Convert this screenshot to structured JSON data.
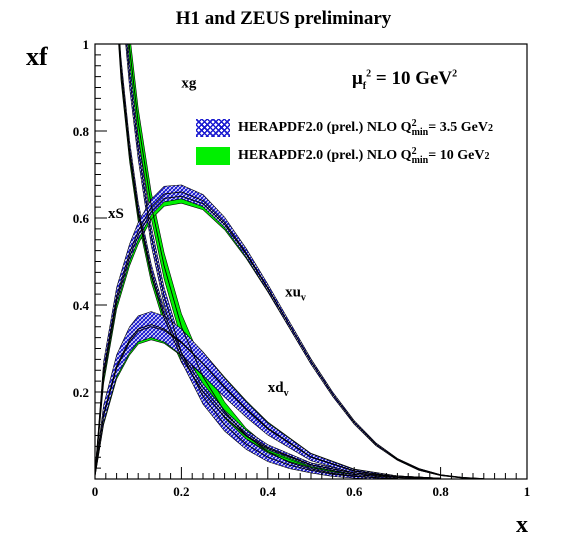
{
  "title": "H1 and ZEUS preliminary",
  "ylabel": "xf",
  "xlabel": "x",
  "scale": {
    "prefix": "μ",
    "sub": "f",
    "sup": "2",
    "suffix": " = 10 GeV",
    "unit_sup": "2"
  },
  "legend": [
    {
      "label": "HERAPDF2.0 (prel.) NLO Q",
      "sub": "min",
      "sup": "2",
      "suffix": " = 3.5 GeV",
      "suffix_sup": "2",
      "style": "hatched-blue"
    },
    {
      "label": "HERAPDF2.0 (prel.) NLO Q",
      "sub": "min",
      "sup": "2",
      "suffix": " = 10 GeV",
      "suffix_sup": "2",
      "style": "solid-green"
    }
  ],
  "colors": {
    "hatch": "#1a1ad0",
    "green": "#00f000",
    "line": "#000000"
  },
  "chart_data": {
    "type": "line",
    "title": "H1 and ZEUS preliminary",
    "xlabel": "x",
    "ylabel": "xf",
    "xlim": [
      0,
      1
    ],
    "ylim": [
      0,
      1
    ],
    "x_ticks": [
      "0",
      "0.2",
      "0.4",
      "0.6",
      "0.8",
      "1"
    ],
    "y_ticks": [
      "0.2",
      "0.4",
      "0.6",
      "0.8",
      "1"
    ],
    "grid": false,
    "legend_position": "top-right",
    "series": [
      {
        "name": "xg",
        "label": "xg",
        "sub": "",
        "label_x": 0.2,
        "label_y": 0.9,
        "q35": {
          "x": [
            0.05,
            0.08,
            0.1,
            0.13,
            0.16,
            0.2,
            0.25,
            0.3,
            0.35,
            0.4,
            0.45,
            0.5,
            0.55,
            0.6,
            0.65,
            0.7
          ],
          "y": [
            1.26,
            0.93,
            0.76,
            0.56,
            0.42,
            0.29,
            0.19,
            0.125,
            0.08,
            0.05,
            0.032,
            0.02,
            0.011,
            0.006,
            0.003,
            0.001
          ],
          "w": [
            0.03,
            0.03,
            0.025,
            0.022,
            0.02,
            0.02,
            0.018,
            0.015,
            0.012,
            0.01,
            0.008,
            0.006,
            0.005,
            0.004,
            0.003,
            0.002
          ]
        },
        "q10": {
          "x": [
            0.05,
            0.08,
            0.1,
            0.13,
            0.16,
            0.2,
            0.25,
            0.3,
            0.35,
            0.4,
            0.45,
            0.5,
            0.55,
            0.6,
            0.65,
            0.7
          ],
          "y": [
            1.32,
            0.99,
            0.82,
            0.63,
            0.49,
            0.35,
            0.235,
            0.155,
            0.1,
            0.063,
            0.038,
            0.023,
            0.013,
            0.007,
            0.003,
            0.001
          ],
          "w": [
            0.035,
            0.035,
            0.032,
            0.03,
            0.03,
            0.03,
            0.028,
            0.022,
            0.016,
            0.012,
            0.009,
            0.007,
            0.005,
            0.004,
            0.003,
            0.002
          ]
        }
      },
      {
        "name": "xS",
        "label": "xS",
        "sub": "",
        "label_x": 0.03,
        "label_y": 0.6,
        "q35": {
          "x": [
            0.04,
            0.06,
            0.08,
            0.1,
            0.13,
            0.16,
            0.2,
            0.25,
            0.3,
            0.35,
            0.4,
            0.5,
            0.6,
            0.7,
            0.8
          ],
          "y": [
            1.25,
            0.95,
            0.76,
            0.62,
            0.48,
            0.38,
            0.29,
            0.21,
            0.15,
            0.105,
            0.073,
            0.033,
            0.014,
            0.005,
            0.001
          ],
          "w": [
            0.02,
            0.02,
            0.018,
            0.016,
            0.014,
            0.012,
            0.01,
            0.009,
            0.008,
            0.007,
            0.006,
            0.004,
            0.003,
            0.002,
            0.001
          ]
        },
        "q10": {
          "x": [
            0.04,
            0.06,
            0.08,
            0.1,
            0.13,
            0.16,
            0.2,
            0.25,
            0.3,
            0.35,
            0.4,
            0.5,
            0.6,
            0.7,
            0.8
          ],
          "y": [
            1.24,
            0.94,
            0.75,
            0.61,
            0.47,
            0.37,
            0.28,
            0.2,
            0.143,
            0.1,
            0.07,
            0.032,
            0.014,
            0.005,
            0.001
          ],
          "w": [
            0.022,
            0.022,
            0.02,
            0.018,
            0.016,
            0.014,
            0.012,
            0.011,
            0.01,
            0.008,
            0.007,
            0.005,
            0.003,
            0.002,
            0.001
          ]
        }
      },
      {
        "name": "xu_v",
        "label": "xu",
        "sub": "v",
        "label_x": 0.44,
        "label_y": 0.42,
        "q35": {
          "x": [
            0,
            0.02,
            0.05,
            0.08,
            0.1,
            0.13,
            0.16,
            0.2,
            0.25,
            0.3,
            0.35,
            0.4,
            0.45,
            0.5,
            0.55,
            0.6,
            0.65,
            0.7,
            0.75,
            0.8,
            0.85,
            0.9
          ],
          "y": [
            0.01,
            0.25,
            0.42,
            0.52,
            0.57,
            0.625,
            0.655,
            0.66,
            0.64,
            0.59,
            0.52,
            0.44,
            0.355,
            0.27,
            0.195,
            0.13,
            0.08,
            0.045,
            0.022,
            0.009,
            0.003,
            0.0005
          ],
          "w": [
            0.005,
            0.02,
            0.02,
            0.02,
            0.02,
            0.018,
            0.018,
            0.016,
            0.014,
            0.012,
            0.01,
            0.008,
            0.007,
            0.006,
            0.005,
            0.004,
            0.003,
            0.002,
            0.002,
            0.001,
            0.001,
            0.0005
          ]
        },
        "q10": {
          "x": [
            0,
            0.02,
            0.05,
            0.08,
            0.1,
            0.13,
            0.16,
            0.2,
            0.25,
            0.3,
            0.35,
            0.4,
            0.45,
            0.5,
            0.55,
            0.6,
            0.65,
            0.7,
            0.75,
            0.8,
            0.85,
            0.9
          ],
          "y": [
            0.01,
            0.24,
            0.41,
            0.51,
            0.56,
            0.615,
            0.645,
            0.65,
            0.633,
            0.585,
            0.517,
            0.438,
            0.354,
            0.27,
            0.195,
            0.13,
            0.08,
            0.045,
            0.022,
            0.009,
            0.003,
            0.0005
          ],
          "w": [
            0.005,
            0.02,
            0.02,
            0.02,
            0.02,
            0.018,
            0.018,
            0.016,
            0.014,
            0.012,
            0.01,
            0.008,
            0.007,
            0.006,
            0.005,
            0.004,
            0.003,
            0.002,
            0.002,
            0.001,
            0.001,
            0.0005
          ]
        }
      },
      {
        "name": "xd_v",
        "label": "xd",
        "sub": "v",
        "label_x": 0.4,
        "label_y": 0.2,
        "q35": {
          "x": [
            0,
            0.02,
            0.05,
            0.08,
            0.1,
            0.13,
            0.16,
            0.2,
            0.25,
            0.3,
            0.35,
            0.4,
            0.5,
            0.6,
            0.7,
            0.8
          ],
          "y": [
            0.01,
            0.15,
            0.26,
            0.32,
            0.345,
            0.355,
            0.345,
            0.315,
            0.265,
            0.21,
            0.16,
            0.115,
            0.05,
            0.018,
            0.005,
            0.001
          ],
          "w": [
            0.005,
            0.02,
            0.025,
            0.03,
            0.03,
            0.03,
            0.03,
            0.03,
            0.027,
            0.022,
            0.018,
            0.014,
            0.008,
            0.004,
            0.002,
            0.001
          ]
        },
        "q10": {
          "x": [
            0,
            0.02,
            0.05,
            0.08,
            0.1,
            0.13,
            0.16,
            0.2,
            0.25,
            0.3,
            0.35,
            0.4,
            0.5,
            0.6,
            0.7,
            0.8
          ],
          "y": [
            0.01,
            0.145,
            0.255,
            0.315,
            0.34,
            0.35,
            0.342,
            0.313,
            0.265,
            0.212,
            0.162,
            0.117,
            0.051,
            0.019,
            0.005,
            0.001
          ],
          "w": [
            0.005,
            0.02,
            0.025,
            0.03,
            0.03,
            0.03,
            0.03,
            0.03,
            0.027,
            0.022,
            0.018,
            0.014,
            0.008,
            0.004,
            0.002,
            0.001
          ]
        }
      }
    ]
  }
}
